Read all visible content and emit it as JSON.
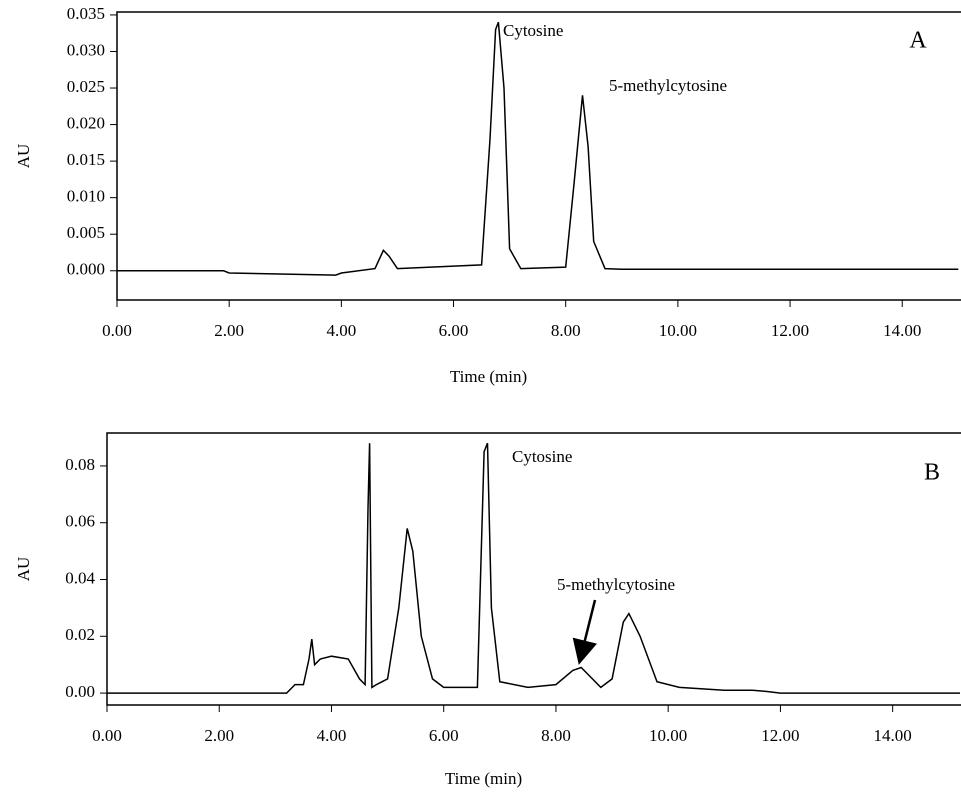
{
  "chart_data": [
    {
      "type": "line",
      "panel_label": "A",
      "x_label": "Time (min)",
      "y_label": "AU",
      "annotations": [
        "Cytosine",
        "5-methylcytosine"
      ],
      "color": "#000000",
      "xlim": [
        0,
        15.03
      ],
      "ylim": [
        -0.004,
        0.0354
      ],
      "xticks": [
        {
          "value": 0,
          "label": "0.00"
        },
        {
          "value": 2,
          "label": "2.00"
        },
        {
          "value": 4,
          "label": "4.00"
        },
        {
          "value": 6,
          "label": "6.00"
        },
        {
          "value": 8,
          "label": "8.00"
        },
        {
          "value": 10,
          "label": "10.00"
        },
        {
          "value": 12,
          "label": "12.00"
        },
        {
          "value": 14,
          "label": "14.00"
        }
      ],
      "yticks": [
        {
          "value": 0,
          "label": "0.000"
        },
        {
          "value": 0.005,
          "label": "0.005"
        },
        {
          "value": 0.01,
          "label": "0.010"
        },
        {
          "value": 0.015,
          "label": "0.015"
        },
        {
          "value": 0.02,
          "label": "0.020"
        },
        {
          "value": 0.025,
          "label": "0.025"
        },
        {
          "value": 0.03,
          "label": "0.030"
        },
        {
          "value": 0.035,
          "label": "0.035"
        }
      ],
      "x": [
        0,
        1.9,
        2.0,
        3.9,
        4.0,
        4.6,
        4.75,
        4.85,
        5.0,
        6.5,
        6.65,
        6.75,
        6.8,
        6.9,
        7.0,
        7.2,
        8.0,
        8.15,
        8.3,
        8.4,
        8.5,
        8.7,
        9,
        15
      ],
      "values": [
        0,
        0,
        -0.0003,
        -0.0006,
        -0.0003,
        0.0003,
        0.0028,
        0.002,
        0.0003,
        0.0008,
        0.018,
        0.033,
        0.034,
        0.025,
        0.003,
        0.0003,
        0.0005,
        0.012,
        0.024,
        0.017,
        0.004,
        0.0003,
        0.0002,
        0.0002
      ]
    },
    {
      "type": "line",
      "panel_label": "B",
      "x_label": "Time (min)",
      "y_label": "AU",
      "annotations": [
        "Cytosine",
        "5-methylcytosine"
      ],
      "color": "#000000",
      "xlim": [
        0,
        15.2
      ],
      "ylim": [
        -0.0042,
        0.0916
      ],
      "xticks": [
        {
          "value": 0,
          "label": "0.00"
        },
        {
          "value": 2,
          "label": "2.00"
        },
        {
          "value": 4,
          "label": "4.00"
        },
        {
          "value": 6,
          "label": "6.00"
        },
        {
          "value": 8,
          "label": "8.00"
        },
        {
          "value": 10,
          "label": "10.00"
        },
        {
          "value": 12,
          "label": "12.00"
        },
        {
          "value": 14,
          "label": "14.00"
        }
      ],
      "yticks": [
        {
          "value": 0,
          "label": "0.00"
        },
        {
          "value": 0.02,
          "label": "0.02"
        },
        {
          "value": 0.04,
          "label": "0.04"
        },
        {
          "value": 0.06,
          "label": "0.06"
        },
        {
          "value": 0.08,
          "label": "0.08"
        }
      ],
      "x": [
        0,
        3.2,
        3.35,
        3.5,
        3.6,
        3.65,
        3.7,
        3.8,
        4.0,
        4.3,
        4.5,
        4.6,
        4.65,
        4.68,
        4.72,
        4.8,
        5.0,
        5.2,
        5.35,
        5.45,
        5.6,
        5.8,
        6.0,
        6.6,
        6.72,
        6.78,
        6.85,
        7.0,
        7.5,
        8.0,
        8.3,
        8.45,
        8.6,
        8.8,
        9.0,
        9.2,
        9.3,
        9.5,
        9.8,
        10.2,
        11,
        11.5,
        11.8,
        12,
        15.2
      ],
      "values": [
        0,
        0,
        0.003,
        0.003,
        0.012,
        0.019,
        0.01,
        0.012,
        0.013,
        0.012,
        0.005,
        0.003,
        0.065,
        0.088,
        0.002,
        0.003,
        0.005,
        0.03,
        0.058,
        0.05,
        0.02,
        0.005,
        0.002,
        0.002,
        0.085,
        0.088,
        0.03,
        0.004,
        0.002,
        0.003,
        0.008,
        0.009,
        0.006,
        0.002,
        0.005,
        0.025,
        0.028,
        0.02,
        0.004,
        0.002,
        0.001,
        0.001,
        0.0005,
        0,
        0
      ]
    }
  ]
}
